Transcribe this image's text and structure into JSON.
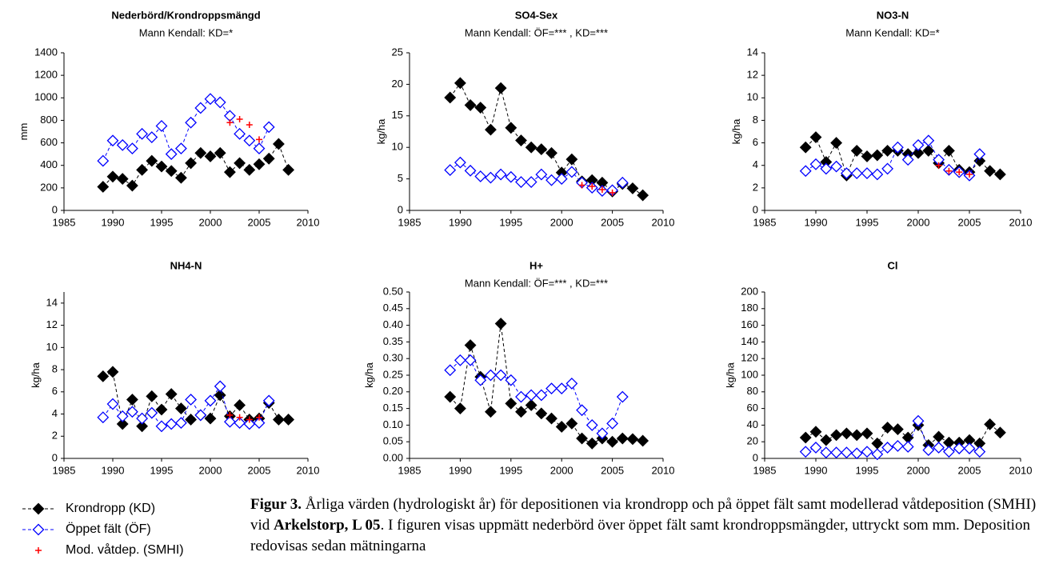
{
  "chart_data": [
    {
      "type": "line",
      "title": "Nederbörd/Krondroppsmängd",
      "subtitle": "Mann Kendall: KD=*",
      "y_label": "mm",
      "x": [
        1989,
        1990,
        1991,
        1992,
        1993,
        1994,
        1995,
        1996,
        1997,
        1998,
        1999,
        2000,
        2001,
        2002,
        2003,
        2004,
        2005,
        2006,
        2007,
        2008
      ],
      "series": [
        {
          "name": "Krondropp (KD)",
          "color": "#000000",
          "marker": "diamond-filled",
          "line": true,
          "values": [
            210,
            300,
            280,
            220,
            360,
            440,
            390,
            350,
            290,
            420,
            510,
            480,
            510,
            340,
            420,
            360,
            410,
            460,
            590,
            360
          ]
        },
        {
          "name": "Öppet fält (ÖF)",
          "color": "#0000ff",
          "marker": "diamond-open",
          "line": true,
          "values": [
            440,
            620,
            580,
            550,
            680,
            650,
            750,
            500,
            550,
            780,
            910,
            990,
            960,
            840,
            680,
            620,
            550,
            740,
            null,
            null
          ]
        },
        {
          "name": "Mod. våtdep. (SMHI)",
          "color": "#ff0000",
          "marker": "plus",
          "line": false,
          "values": [
            null,
            null,
            null,
            null,
            null,
            null,
            null,
            null,
            null,
            null,
            null,
            null,
            null,
            780,
            810,
            760,
            630,
            null,
            null,
            null
          ]
        }
      ],
      "xlim": [
        1985,
        2010
      ],
      "xticks": [
        1985,
        1990,
        1995,
        2000,
        2005,
        2010
      ],
      "ylim": [
        0,
        1400
      ],
      "yticks": [
        0,
        200,
        400,
        600,
        800,
        1000,
        1200,
        1400
      ]
    },
    {
      "type": "line",
      "title": "SO4-Sex",
      "subtitle": "Mann Kendall: ÖF=*** , KD=***",
      "y_label": "kg/ha",
      "x": [
        1989,
        1990,
        1991,
        1992,
        1993,
        1994,
        1995,
        1996,
        1997,
        1998,
        1999,
        2000,
        2001,
        2002,
        2003,
        2004,
        2005,
        2006,
        2007,
        2008
      ],
      "series": [
        {
          "name": "Krondropp (KD)",
          "color": "#000000",
          "marker": "diamond-filled",
          "line": true,
          "values": [
            17.9,
            20.2,
            16.7,
            16.3,
            12.8,
            19.4,
            13.1,
            11.1,
            10.0,
            9.7,
            9.1,
            6.0,
            8.1,
            4.6,
            4.8,
            4.4,
            3.0,
            4.2,
            3.5,
            2.4
          ]
        },
        {
          "name": "Öppet fält (ÖF)",
          "color": "#0000ff",
          "marker": "diamond-open",
          "line": true,
          "values": [
            6.4,
            7.6,
            6.3,
            5.4,
            5.2,
            5.7,
            5.3,
            4.5,
            4.5,
            5.7,
            4.8,
            5.0,
            6.1,
            4.4,
            3.6,
            3.1,
            3.2,
            4.4,
            null,
            null
          ]
        },
        {
          "name": "Mod. våtdep. (SMHI)",
          "color": "#ff0000",
          "marker": "plus",
          "line": false,
          "values": [
            null,
            null,
            null,
            null,
            null,
            null,
            null,
            null,
            null,
            null,
            null,
            null,
            null,
            4.0,
            3.8,
            3.3,
            2.8,
            null,
            null,
            null
          ]
        }
      ],
      "xlim": [
        1985,
        2010
      ],
      "xticks": [
        1985,
        1990,
        1995,
        2000,
        2005,
        2010
      ],
      "ylim": [
        0,
        25
      ],
      "yticks": [
        0,
        5,
        10,
        15,
        20,
        25
      ]
    },
    {
      "type": "line",
      "title": "NO3-N",
      "subtitle": "Mann Kendall: KD=*",
      "y_label": "kg/ha",
      "x": [
        1989,
        1990,
        1991,
        1992,
        1993,
        1994,
        1995,
        1996,
        1997,
        1998,
        1999,
        2000,
        2001,
        2002,
        2003,
        2004,
        2005,
        2006,
        2007,
        2008
      ],
      "series": [
        {
          "name": "Krondropp (KD)",
          "color": "#000000",
          "marker": "diamond-filled",
          "line": true,
          "values": [
            5.6,
            6.5,
            4.3,
            6.0,
            3.1,
            5.3,
            4.8,
            4.9,
            5.3,
            5.3,
            5.0,
            5.1,
            5.3,
            4.2,
            5.3,
            3.6,
            3.4,
            4.4,
            3.5,
            3.2
          ]
        },
        {
          "name": "Öppet fält (ÖF)",
          "color": "#0000ff",
          "marker": "diamond-open",
          "line": true,
          "values": [
            3.5,
            4.1,
            3.7,
            3.9,
            3.3,
            3.3,
            3.3,
            3.2,
            3.7,
            5.6,
            4.5,
            5.8,
            6.2,
            4.5,
            3.6,
            3.4,
            3.1,
            5.0,
            null,
            null
          ]
        },
        {
          "name": "Mod. våtdep. (SMHI)",
          "color": "#ff0000",
          "marker": "plus",
          "line": false,
          "values": [
            null,
            null,
            null,
            null,
            null,
            null,
            null,
            null,
            null,
            null,
            null,
            null,
            null,
            4.0,
            3.5,
            3.4,
            3.2,
            null,
            null,
            null
          ]
        }
      ],
      "xlim": [
        1985,
        2010
      ],
      "xticks": [
        1985,
        1990,
        1995,
        2000,
        2005,
        2010
      ],
      "ylim": [
        0,
        14
      ],
      "yticks": [
        0,
        2,
        4,
        6,
        8,
        10,
        12,
        14
      ]
    },
    {
      "type": "line",
      "title": "NH4-N",
      "y_label": "kg/ha",
      "x": [
        1989,
        1990,
        1991,
        1992,
        1993,
        1994,
        1995,
        1996,
        1997,
        1998,
        1999,
        2000,
        2001,
        2002,
        2003,
        2004,
        2005,
        2006,
        2007,
        2008
      ],
      "series": [
        {
          "name": "Krondropp (KD)",
          "color": "#000000",
          "marker": "diamond-filled",
          "line": true,
          "values": [
            7.4,
            7.8,
            3.1,
            5.3,
            2.9,
            5.6,
            4.4,
            5.8,
            4.5,
            3.5,
            3.9,
            3.6,
            5.7,
            3.8,
            4.8,
            3.5,
            3.6,
            5.0,
            3.5,
            3.5
          ]
        },
        {
          "name": "Öppet fält (ÖF)",
          "color": "#0000ff",
          "marker": "diamond-open",
          "line": true,
          "values": [
            3.7,
            4.9,
            3.8,
            4.2,
            3.6,
            4.1,
            2.9,
            3.1,
            3.2,
            5.3,
            3.9,
            5.2,
            6.5,
            3.3,
            3.2,
            3.1,
            3.2,
            5.2,
            null,
            null
          ]
        },
        {
          "name": "Mod. våtdep. (SMHI)",
          "color": "#ff0000",
          "marker": "plus",
          "line": false,
          "values": [
            null,
            null,
            null,
            null,
            null,
            null,
            null,
            null,
            null,
            null,
            null,
            null,
            null,
            3.9,
            3.7,
            3.5,
            3.7,
            null,
            null,
            null
          ]
        }
      ],
      "xlim": [
        1985,
        2010
      ],
      "xticks": [
        1985,
        1990,
        1995,
        2000,
        2005,
        2010
      ],
      "ylim": [
        0,
        15
      ],
      "yticks": [
        0,
        2,
        4,
        6,
        8,
        10,
        12,
        14
      ]
    },
    {
      "type": "line",
      "title": "H+",
      "subtitle": "Mann Kendall: ÖF=*** , KD=***",
      "y_label": "kg/ha",
      "x": [
        1989,
        1990,
        1991,
        1992,
        1993,
        1994,
        1995,
        1996,
        1997,
        1998,
        1999,
        2000,
        2001,
        2002,
        2003,
        2004,
        2005,
        2006,
        2007,
        2008
      ],
      "series": [
        {
          "name": "Krondropp (KD)",
          "color": "#000000",
          "marker": "diamond-filled",
          "line": true,
          "values": [
            0.185,
            0.15,
            0.34,
            0.245,
            0.14,
            0.405,
            0.165,
            0.14,
            0.16,
            0.135,
            0.12,
            0.095,
            0.105,
            0.06,
            0.045,
            0.06,
            0.05,
            0.06,
            0.058,
            0.053
          ]
        },
        {
          "name": "Öppet fält (ÖF)",
          "color": "#0000ff",
          "marker": "diamond-open",
          "line": true,
          "values": [
            0.265,
            0.295,
            0.295,
            0.235,
            0.25,
            0.25,
            0.235,
            0.185,
            0.19,
            0.19,
            0.21,
            0.21,
            0.225,
            0.145,
            0.1,
            0.075,
            0.105,
            0.185,
            null,
            null
          ]
        }
      ],
      "xlim": [
        1985,
        2010
      ],
      "xticks": [
        1985,
        1990,
        1995,
        2000,
        2005,
        2010
      ],
      "ylim": [
        0,
        0.5
      ],
      "yticks": [
        {
          "value": 0,
          "label": "0.00"
        },
        {
          "value": 0.05,
          "label": "0.05"
        },
        {
          "value": 0.1,
          "label": "0.10"
        },
        {
          "value": 0.15,
          "label": "0.15"
        },
        {
          "value": 0.2,
          "label": "0.20"
        },
        {
          "value": 0.25,
          "label": "0.25"
        },
        {
          "value": 0.3,
          "label": "0.30"
        },
        {
          "value": 0.35,
          "label": "0.35"
        },
        {
          "value": 0.4,
          "label": "0.40"
        },
        {
          "value": 0.45,
          "label": "0.45"
        },
        {
          "value": 0.5,
          "label": "0.50"
        }
      ]
    },
    {
      "type": "line",
      "title": "Cl",
      "y_label": "kg/ha",
      "x": [
        1989,
        1990,
        1991,
        1992,
        1993,
        1994,
        1995,
        1996,
        1997,
        1998,
        1999,
        2000,
        2001,
        2002,
        2003,
        2004,
        2005,
        2006,
        2007,
        2008
      ],
      "series": [
        {
          "name": "Krondropp (KD)",
          "color": "#000000",
          "marker": "diamond-filled",
          "line": true,
          "values": [
            25,
            32,
            22,
            28,
            30,
            28,
            30,
            18,
            37,
            35,
            25,
            40,
            16,
            26,
            19,
            19,
            22,
            18,
            41,
            31
          ]
        },
        {
          "name": "Öppet fält (ÖF)",
          "color": "#0000ff",
          "marker": "diamond-open",
          "line": true,
          "values": [
            8,
            13,
            7,
            7,
            7,
            6,
            8,
            5,
            13,
            15,
            14,
            45,
            10,
            13,
            8,
            12,
            12,
            8,
            null,
            null
          ]
        }
      ],
      "xlim": [
        1985,
        2010
      ],
      "xticks": [
        1985,
        1990,
        1995,
        2000,
        2005,
        2010
      ],
      "ylim": [
        0,
        200
      ],
      "yticks": [
        0,
        20,
        40,
        60,
        80,
        100,
        120,
        140,
        160,
        180,
        200
      ]
    }
  ],
  "caption": {
    "label": "Figur 3.",
    "text_1": " Årliga värden (hydrologiskt år) för depositionen via krondropp och på öppet fält samt modellerad våtdeposition (SMHI) vid ",
    "site": "Arkelstorp, L 05",
    "text_2": ". I figuren visas uppmätt nederbörd över öppet fält samt krondroppsmängder, uttryckt som mm. Deposition redovisas sedan mätningarna"
  }
}
